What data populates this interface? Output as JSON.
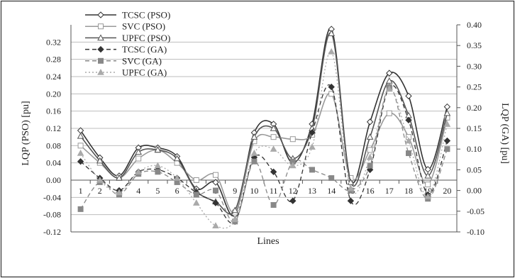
{
  "chart_data": {
    "type": "line",
    "title": "",
    "xlabel": "Lines",
    "ylabel_left": "LQP (PSO) [pu]",
    "ylabel_right": "LQP (GA) [pu]",
    "x": [
      1,
      2,
      3,
      4,
      5,
      6,
      7,
      8,
      9,
      10,
      11,
      12,
      13,
      14,
      15,
      16,
      17,
      18,
      19,
      20
    ],
    "y_left_lim": [
      -0.12,
      0.36
    ],
    "y_left_ticks": [
      "0.32",
      "0.28",
      "0.24",
      "0.20",
      "0.16",
      "0.12",
      "0.08",
      "0.04",
      "0.00",
      "-0.04",
      "-0.08",
      "-0.12"
    ],
    "y_right_lim": [
      -0.1,
      0.4
    ],
    "y_right_ticks": [
      "0.40",
      "0.35",
      "0.30",
      "0.25",
      "0.20",
      "0.15",
      "0.10",
      "0.05",
      "0.00",
      "-0.05",
      "-0.10"
    ],
    "grid": true,
    "legend_position": "top-left",
    "series": [
      {
        "name": "TCSC (PSO)",
        "axis": "left",
        "style": "solid",
        "marker": "diamond-open",
        "color": "#333333",
        "values": [
          0.115,
          0.052,
          0.01,
          0.075,
          0.075,
          0.055,
          -0.02,
          -0.005,
          -0.08,
          0.11,
          0.13,
          0.04,
          0.13,
          0.35,
          0.0,
          0.135,
          0.248,
          0.195,
          0.025,
          0.17
        ]
      },
      {
        "name": "SVC (PSO)",
        "axis": "left",
        "style": "solid",
        "marker": "square-open",
        "color": "#999999",
        "values": [
          0.08,
          0.04,
          0.005,
          0.05,
          0.07,
          0.04,
          0.0,
          0.012,
          -0.075,
          0.09,
          0.1,
          0.095,
          0.105,
          0.2,
          0.005,
          0.07,
          0.155,
          0.1,
          -0.01,
          0.145
        ]
      },
      {
        "name": "UPFC (PSO)",
        "axis": "left",
        "style": "solid",
        "marker": "triangle-open",
        "color": "#555555",
        "values": [
          0.102,
          0.045,
          0.005,
          0.065,
          0.07,
          0.05,
          -0.025,
          -0.05,
          -0.07,
          0.1,
          0.12,
          0.05,
          0.12,
          0.34,
          -0.005,
          0.1,
          0.23,
          0.15,
          0.01,
          0.155
        ]
      }
    ],
    "series_right": [
      {
        "name": "TCSC (GA)",
        "axis": "right",
        "style": "dashed",
        "marker": "diamond-filled",
        "color": "#333333",
        "values": [
          0.07,
          0.03,
          0.0,
          0.045,
          0.05,
          0.03,
          -0.005,
          -0.03,
          -0.075,
          0.08,
          0.045,
          -0.025,
          0.14,
          0.25,
          -0.025,
          0.05,
          0.25,
          0.17,
          -0.01,
          0.12
        ]
      },
      {
        "name": "SVC (GA)",
        "axis": "right",
        "style": "dashed",
        "marker": "square-filled",
        "color": "#888888",
        "values": [
          -0.045,
          0.02,
          -0.01,
          0.04,
          0.045,
          0.02,
          -0.01,
          0.0,
          -0.075,
          0.07,
          -0.035,
          0.07,
          0.05,
          0.03,
          0.0,
          0.06,
          0.25,
          0.09,
          -0.02,
          0.1
        ]
      },
      {
        "name": "UPFC (GA)",
        "axis": "right",
        "style": "dotted",
        "marker": "triangle-filled",
        "color": "#aaaaaa",
        "values": [
          0.09,
          0.025,
          -0.005,
          0.045,
          0.06,
          0.03,
          -0.03,
          -0.085,
          -0.07,
          0.09,
          0.1,
          0.06,
          0.105,
          0.335,
          0.005,
          0.08,
          0.245,
          0.12,
          -0.015,
          0.16
        ]
      }
    ]
  }
}
